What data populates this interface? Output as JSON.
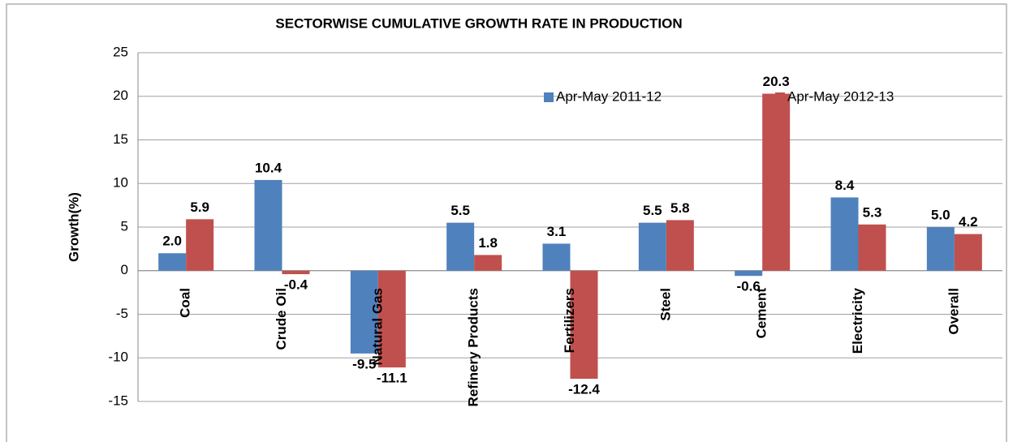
{
  "chart_data": {
    "type": "bar",
    "title": "SECTORWISE CUMULATIVE GROWTH RATE IN PRODUCTION",
    "y_label": "Growth(%)",
    "categories": [
      "Coal",
      "Crude Oil",
      "Natural Gas",
      "Refinery Products",
      "Fertilizers",
      "Steel",
      "Cement",
      "Electricity",
      "Overall"
    ],
    "series": [
      {
        "name": "Apr-May 2011-12",
        "color": "#4f81bd",
        "values": [
          2.0,
          10.4,
          -9.5,
          5.5,
          3.1,
          5.5,
          -0.6,
          8.4,
          5.0
        ],
        "value_labels": [
          "2.0",
          "10.4",
          "-9.5",
          "5.5",
          "3.1",
          "5.5",
          "-0.6",
          "8.4",
          "5.0"
        ]
      },
      {
        "name": "Apr-May 2012-13",
        "color": "#c0504d",
        "values": [
          5.9,
          -0.4,
          -11.1,
          1.8,
          -12.4,
          5.8,
          20.3,
          5.3,
          4.2
        ],
        "value_labels": [
          "5.9",
          "-0.4",
          "-11.1",
          "1.8",
          "-12.4",
          "5.8",
          "20.3",
          "5.3",
          "4.2"
        ]
      }
    ],
    "ylim": [
      -15,
      25
    ],
    "yticks": [
      -15,
      -10,
      -5,
      0,
      5,
      10,
      15,
      20,
      25
    ],
    "grid": true
  }
}
